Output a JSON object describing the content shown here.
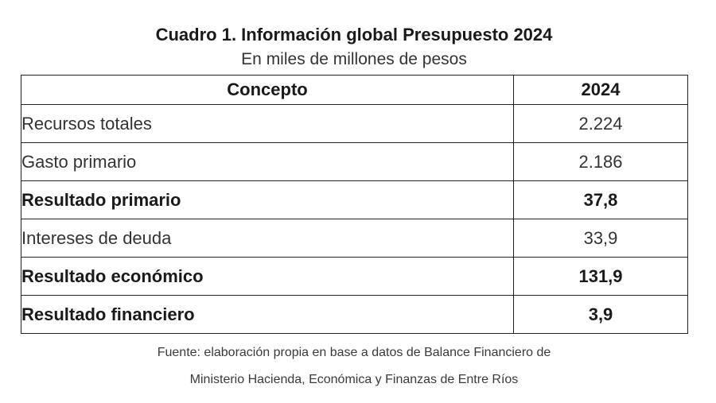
{
  "title": "Cuadro 1. Información global Presupuesto 2024",
  "subtitle": "En miles de millones de pesos",
  "table": {
    "headers": [
      "Concepto",
      "2024"
    ],
    "rows": [
      {
        "concept": "Recursos totales",
        "value": "2.224",
        "bold": false
      },
      {
        "concept": "Gasto primario",
        "value": "2.186",
        "bold": false
      },
      {
        "concept": "Resultado primario",
        "value": "37,8",
        "bold": true
      },
      {
        "concept": "Intereses de deuda",
        "value": "33,9",
        "bold": false
      },
      {
        "concept": "Resultado económico",
        "value": "131,9",
        "bold": true
      },
      {
        "concept": "Resultado financiero",
        "value": "3,9",
        "bold": true
      }
    ]
  },
  "source": {
    "line1": "Fuente: elaboración propia en base a datos de Balance Financiero de",
    "line2": "Ministerio Hacienda, Económica y Finanzas de Entre Ríos"
  }
}
